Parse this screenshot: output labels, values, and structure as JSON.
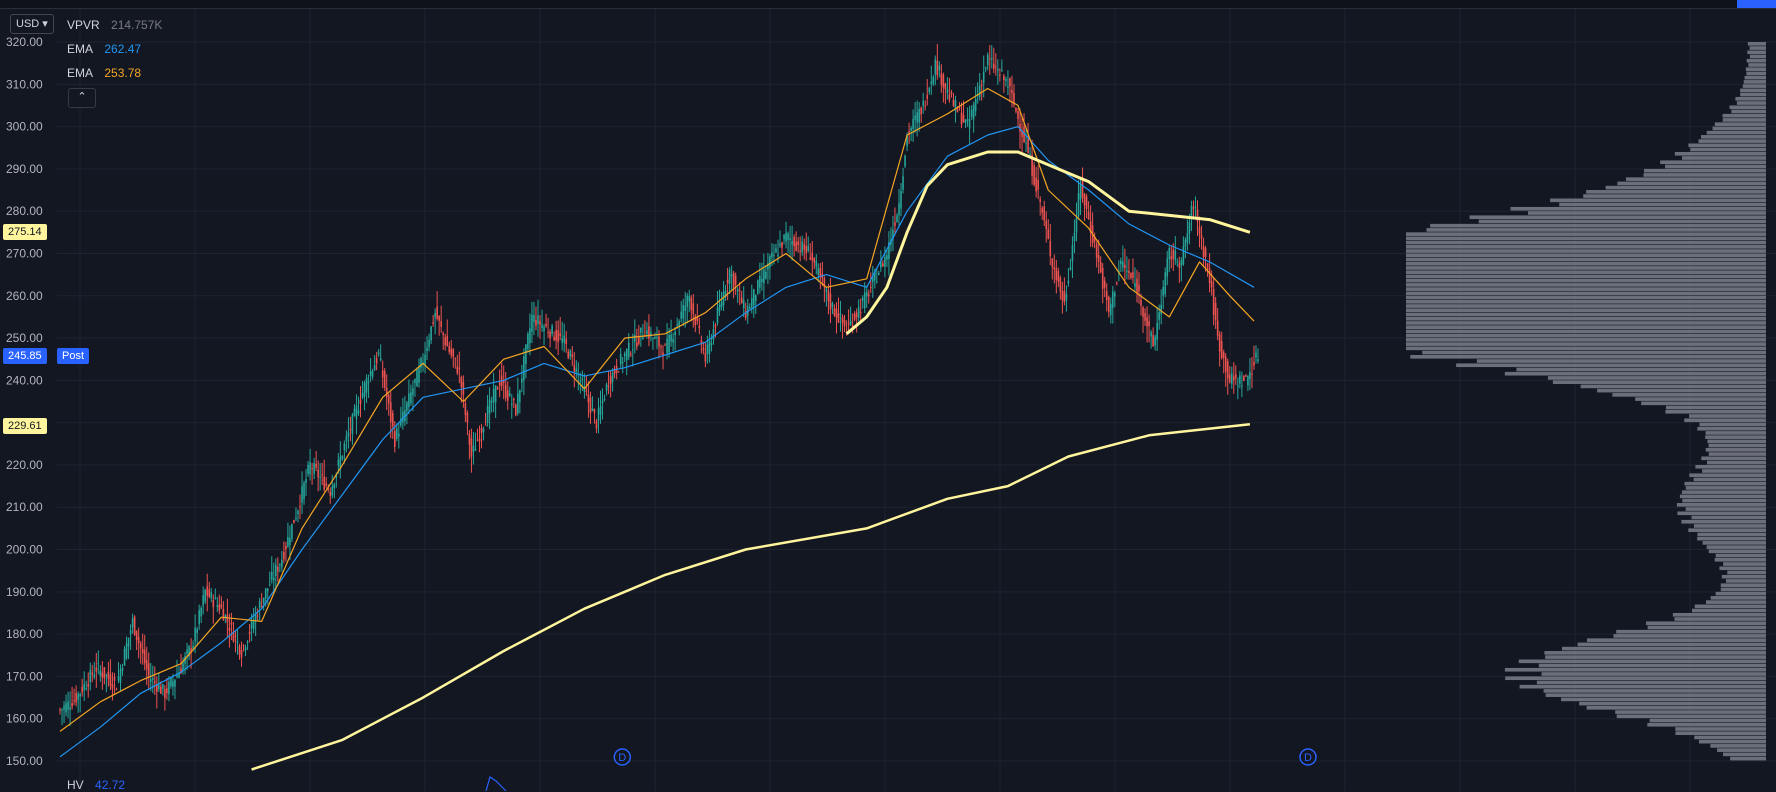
{
  "currency_selector": {
    "label": "USD"
  },
  "legend": {
    "vpvr": {
      "name": "VPVR",
      "value": "214.757K"
    },
    "ema_fast": {
      "name": "EMA",
      "value": "262.47",
      "color": "#2196f3"
    },
    "ema_slow": {
      "name": "EMA",
      "value": "253.78",
      "color": "#f5a623"
    }
  },
  "price_tags": {
    "sma_high": {
      "value": "275.14",
      "color": "#fff59d"
    },
    "last": {
      "value": "245.85",
      "session": "Post",
      "color": "#2962ff"
    },
    "sma_low": {
      "value": "229.61",
      "color": "#fff59d"
    }
  },
  "dividend_markers": [
    {
      "label": "D"
    },
    {
      "label": "D"
    }
  ],
  "hv": {
    "name": "HV",
    "value": "42.72"
  },
  "colors": {
    "up": "#26a69a",
    "down": "#ef5350",
    "background": "#131722",
    "grid": "#1f2330",
    "volume_profile": "#8a8e99"
  },
  "chart_data": {
    "type": "candlestick",
    "y_axis": {
      "min": 150,
      "max": 320,
      "step": 10,
      "tick_labels": [
        "150.00",
        "160.00",
        "170.00",
        "180.00",
        "190.00",
        "200.00",
        "210.00",
        "220.00",
        "230.00",
        "240.00",
        "250.00",
        "260.00",
        "270.00",
        "280.00",
        "290.00",
        "300.00",
        "310.00",
        "320.00"
      ]
    },
    "grid": true,
    "price_path": [
      [
        0,
        162
      ],
      [
        8,
        165
      ],
      [
        18,
        172
      ],
      [
        28,
        168
      ],
      [
        36,
        183
      ],
      [
        44,
        170
      ],
      [
        52,
        166
      ],
      [
        60,
        172
      ],
      [
        66,
        178
      ],
      [
        72,
        190
      ],
      [
        80,
        186
      ],
      [
        90,
        176
      ],
      [
        100,
        188
      ],
      [
        110,
        198
      ],
      [
        118,
        210
      ],
      [
        124,
        220
      ],
      [
        134,
        214
      ],
      [
        142,
        226
      ],
      [
        152,
        240
      ],
      [
        158,
        246
      ],
      [
        166,
        226
      ],
      [
        172,
        234
      ],
      [
        180,
        245
      ],
      [
        186,
        256
      ],
      [
        192,
        248
      ],
      [
        198,
        242
      ],
      [
        204,
        222
      ],
      [
        210,
        230
      ],
      [
        218,
        240
      ],
      [
        226,
        233
      ],
      [
        234,
        255
      ],
      [
        242,
        252
      ],
      [
        250,
        249
      ],
      [
        258,
        240
      ],
      [
        266,
        230
      ],
      [
        272,
        240
      ],
      [
        280,
        246
      ],
      [
        290,
        252
      ],
      [
        300,
        247
      ],
      [
        312,
        260
      ],
      [
        320,
        245
      ],
      [
        332,
        266
      ],
      [
        340,
        256
      ],
      [
        352,
        268
      ],
      [
        360,
        274
      ],
      [
        372,
        270
      ],
      [
        382,
        258
      ],
      [
        390,
        252
      ],
      [
        400,
        260
      ],
      [
        410,
        270
      ],
      [
        416,
        282
      ],
      [
        420,
        298
      ],
      [
        428,
        305
      ],
      [
        434,
        315
      ],
      [
        442,
        306
      ],
      [
        450,
        300
      ],
      [
        460,
        316
      ],
      [
        470,
        310
      ],
      [
        480,
        294
      ],
      [
        486,
        282
      ],
      [
        492,
        268
      ],
      [
        498,
        258
      ],
      [
        506,
        286
      ],
      [
        514,
        270
      ],
      [
        520,
        256
      ],
      [
        526,
        268
      ],
      [
        534,
        262
      ],
      [
        542,
        248
      ],
      [
        550,
        270
      ],
      [
        556,
        268
      ],
      [
        562,
        282
      ],
      [
        570,
        264
      ],
      [
        574,
        250
      ],
      [
        580,
        240
      ],
      [
        588,
        240
      ],
      [
        594,
        246
      ]
    ],
    "series": [
      {
        "name": "EMA",
        "color": "#2196f3",
        "values": [
          [
            0,
            151
          ],
          [
            20,
            158
          ],
          [
            40,
            166
          ],
          [
            60,
            171
          ],
          [
            80,
            178
          ],
          [
            100,
            186
          ],
          [
            120,
            200
          ],
          [
            140,
            213
          ],
          [
            160,
            226
          ],
          [
            180,
            236
          ],
          [
            200,
            238
          ],
          [
            220,
            240
          ],
          [
            240,
            244
          ],
          [
            260,
            241
          ],
          [
            280,
            243
          ],
          [
            300,
            246
          ],
          [
            320,
            249
          ],
          [
            340,
            256
          ],
          [
            360,
            262
          ],
          [
            380,
            265
          ],
          [
            400,
            262
          ],
          [
            420,
            280
          ],
          [
            440,
            293
          ],
          [
            460,
            298
          ],
          [
            475,
            300
          ],
          [
            490,
            292
          ],
          [
            510,
            285
          ],
          [
            530,
            277
          ],
          [
            550,
            272
          ],
          [
            570,
            268
          ],
          [
            592,
            262
          ]
        ]
      },
      {
        "name": "EMA",
        "color": "#f5a623",
        "values": [
          [
            0,
            157
          ],
          [
            20,
            164
          ],
          [
            40,
            169
          ],
          [
            60,
            173
          ],
          [
            80,
            184
          ],
          [
            100,
            183
          ],
          [
            120,
            205
          ],
          [
            140,
            220
          ],
          [
            160,
            236
          ],
          [
            180,
            244
          ],
          [
            200,
            235
          ],
          [
            220,
            245
          ],
          [
            240,
            248
          ],
          [
            260,
            238
          ],
          [
            280,
            250
          ],
          [
            300,
            251
          ],
          [
            320,
            256
          ],
          [
            340,
            264
          ],
          [
            360,
            270
          ],
          [
            380,
            262
          ],
          [
            400,
            264
          ],
          [
            420,
            298
          ],
          [
            440,
            303
          ],
          [
            460,
            309
          ],
          [
            475,
            305
          ],
          [
            490,
            285
          ],
          [
            510,
            276
          ],
          [
            530,
            262
          ],
          [
            550,
            255
          ],
          [
            565,
            268
          ],
          [
            580,
            260
          ],
          [
            592,
            254
          ]
        ]
      },
      {
        "name": "",
        "color": "#fff59d",
        "width": 3,
        "values": [
          [
            390,
            251
          ],
          [
            400,
            255
          ],
          [
            410,
            262
          ],
          [
            420,
            275
          ],
          [
            430,
            286
          ],
          [
            440,
            291
          ],
          [
            460,
            294
          ],
          [
            475,
            294
          ],
          [
            490,
            291
          ],
          [
            510,
            287
          ],
          [
            530,
            280
          ],
          [
            550,
            279
          ],
          [
            570,
            278
          ],
          [
            590,
            275
          ]
        ]
      },
      {
        "name": "",
        "color": "#fff59d",
        "width": 2.5,
        "values": [
          [
            95,
            148
          ],
          [
            140,
            155
          ],
          [
            180,
            165
          ],
          [
            220,
            176
          ],
          [
            260,
            186
          ],
          [
            300,
            194
          ],
          [
            340,
            200
          ],
          [
            400,
            205
          ],
          [
            440,
            212
          ],
          [
            470,
            215
          ],
          [
            500,
            222
          ],
          [
            540,
            227
          ],
          [
            590,
            229.6
          ]
        ]
      }
    ],
    "dividends": [
      {
        "x": 135,
        "label": "D"
      },
      {
        "x": 475,
        "label": "D"
      }
    ],
    "volume_profile": {
      "min_price": 150,
      "max_price": 320,
      "bin": 1,
      "peaks": [
        {
          "price": 268.5,
          "volume": 1.0
        },
        {
          "price": 251.5,
          "volume": 1.0
        },
        {
          "price": 170,
          "volume": 0.68
        }
      ]
    }
  }
}
